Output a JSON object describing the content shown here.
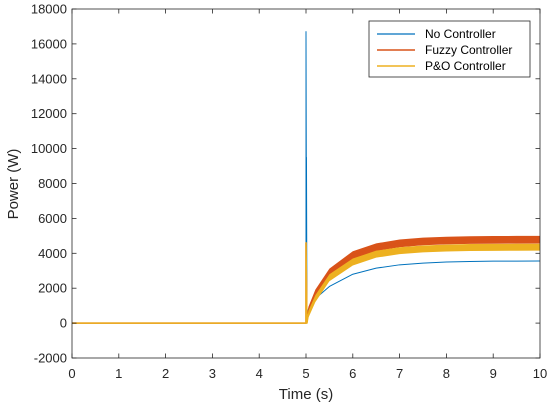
{
  "chart_data": {
    "type": "line",
    "title": "",
    "xlabel": "Time (s)",
    "ylabel": "Power (W)",
    "xlim": [
      0,
      10
    ],
    "ylim": [
      -2000,
      18000
    ],
    "xticks": [
      0,
      1,
      2,
      3,
      4,
      5,
      6,
      7,
      8,
      9,
      10
    ],
    "yticks": [
      -2000,
      0,
      2000,
      4000,
      6000,
      8000,
      10000,
      12000,
      14000,
      16000,
      18000
    ],
    "grid": false,
    "legend_position": "top-right",
    "series": [
      {
        "name": "No Controller",
        "color": "#0072BD",
        "x": [
          0,
          4.99,
          5.0,
          5.0,
          5.01,
          5.01,
          5.02,
          5.02,
          5.05,
          5.2,
          5.5,
          6.0,
          6.5,
          7.0,
          7.5,
          8.0,
          8.5,
          9.0,
          9.5,
          10.0
        ],
        "y": [
          0,
          0,
          0,
          16700,
          4800,
          9500,
          600,
          300,
          800,
          1400,
          2100,
          2800,
          3150,
          3340,
          3440,
          3500,
          3530,
          3550,
          3555,
          3560
        ]
      },
      {
        "name": "Fuzzy Controller",
        "color": "#D95319",
        "x": [
          0,
          4.99,
          5.0,
          5.0,
          5.02,
          5.05,
          5.2,
          5.5,
          6.0,
          6.5,
          7.0,
          7.5,
          8.0,
          8.5,
          9.0,
          9.5,
          10.0
        ],
        "y": [
          0,
          0,
          0,
          4600,
          50,
          700,
          1700,
          2900,
          3900,
          4350,
          4570,
          4680,
          4730,
          4760,
          4770,
          4775,
          4780
        ],
        "band": 220
      },
      {
        "name": "P&O Controller",
        "color": "#EDB120",
        "x": [
          0,
          4.99,
          5.0,
          5.0,
          5.02,
          5.05,
          5.2,
          5.5,
          6.0,
          6.5,
          7.0,
          7.5,
          8.0,
          8.5,
          9.0,
          9.5,
          10.0
        ],
        "y": [
          0,
          0,
          0,
          4600,
          0,
          500,
          1400,
          2600,
          3500,
          3950,
          4150,
          4250,
          4300,
          4330,
          4340,
          4345,
          4350
        ],
        "band": 200
      }
    ]
  }
}
